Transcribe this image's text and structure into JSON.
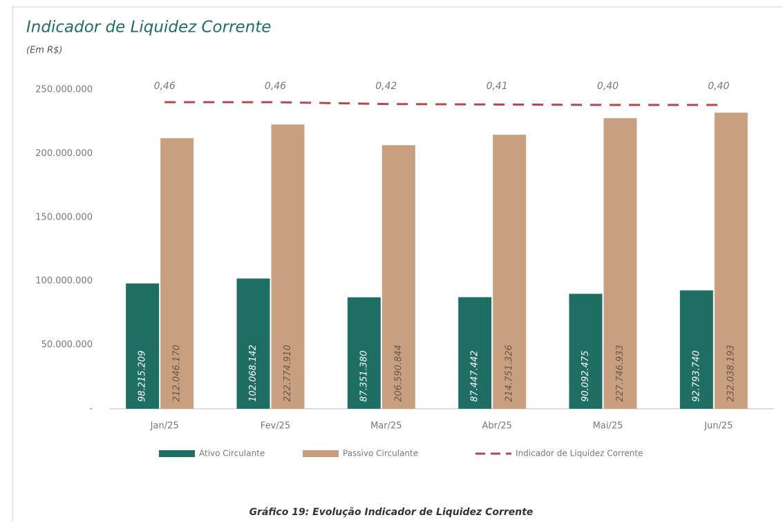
{
  "chart_data": {
    "type": "bar",
    "title": "Indicador de Liquidez Corrente",
    "subtitle": "(Em R$)",
    "caption": "Gráfico 19: Evolução Indicador de Liquidez Corrente",
    "categories": [
      "Jan/25",
      "Fev/25",
      "Mar/25",
      "Abr/25",
      "Mai/25",
      "Jun/25"
    ],
    "ylim": [
      0,
      250000000
    ],
    "yticks": [
      {
        "value": 0,
        "label": "-"
      },
      {
        "value": 50000000,
        "label": "50.000.000"
      },
      {
        "value": 100000000,
        "label": "100.000.000"
      },
      {
        "value": 150000000,
        "label": "150.000.000"
      },
      {
        "value": 200000000,
        "label": "200.000.000"
      },
      {
        "value": 250000000,
        "label": "250.000.000"
      }
    ],
    "y2lim": [
      -6.2,
      0.73
    ],
    "legend": "bottom",
    "series": [
      {
        "name": "Ativo Circulante",
        "color": "#1f6e64",
        "values": [
          98215209,
          102068142,
          87351380,
          87447442,
          90092475,
          92793740
        ],
        "value_labels": [
          "98.215.209",
          "102.068.142",
          "87.351.380",
          "87.447.442",
          "90.092.475",
          "92.793.740"
        ]
      },
      {
        "name": "Passivo Circulante",
        "color": "#c8a07f",
        "values": [
          212046170,
          222774910,
          206590844,
          214751326,
          227746933,
          232038193
        ],
        "value_labels": [
          "212.046.170",
          "222.774.910",
          "206.590.844",
          "214.751.326",
          "227.746.933",
          "232.038.193"
        ]
      },
      {
        "name": "Indicador de Liquidez Corrente",
        "color": "#b5474b",
        "type": "line",
        "axis": "y2",
        "values": [
          0.46,
          0.46,
          0.42,
          0.41,
          0.4,
          0.4
        ],
        "value_labels": [
          "0,46",
          "0,46",
          "0,42",
          "0,41",
          "0,40",
          "0,40"
        ]
      }
    ]
  }
}
